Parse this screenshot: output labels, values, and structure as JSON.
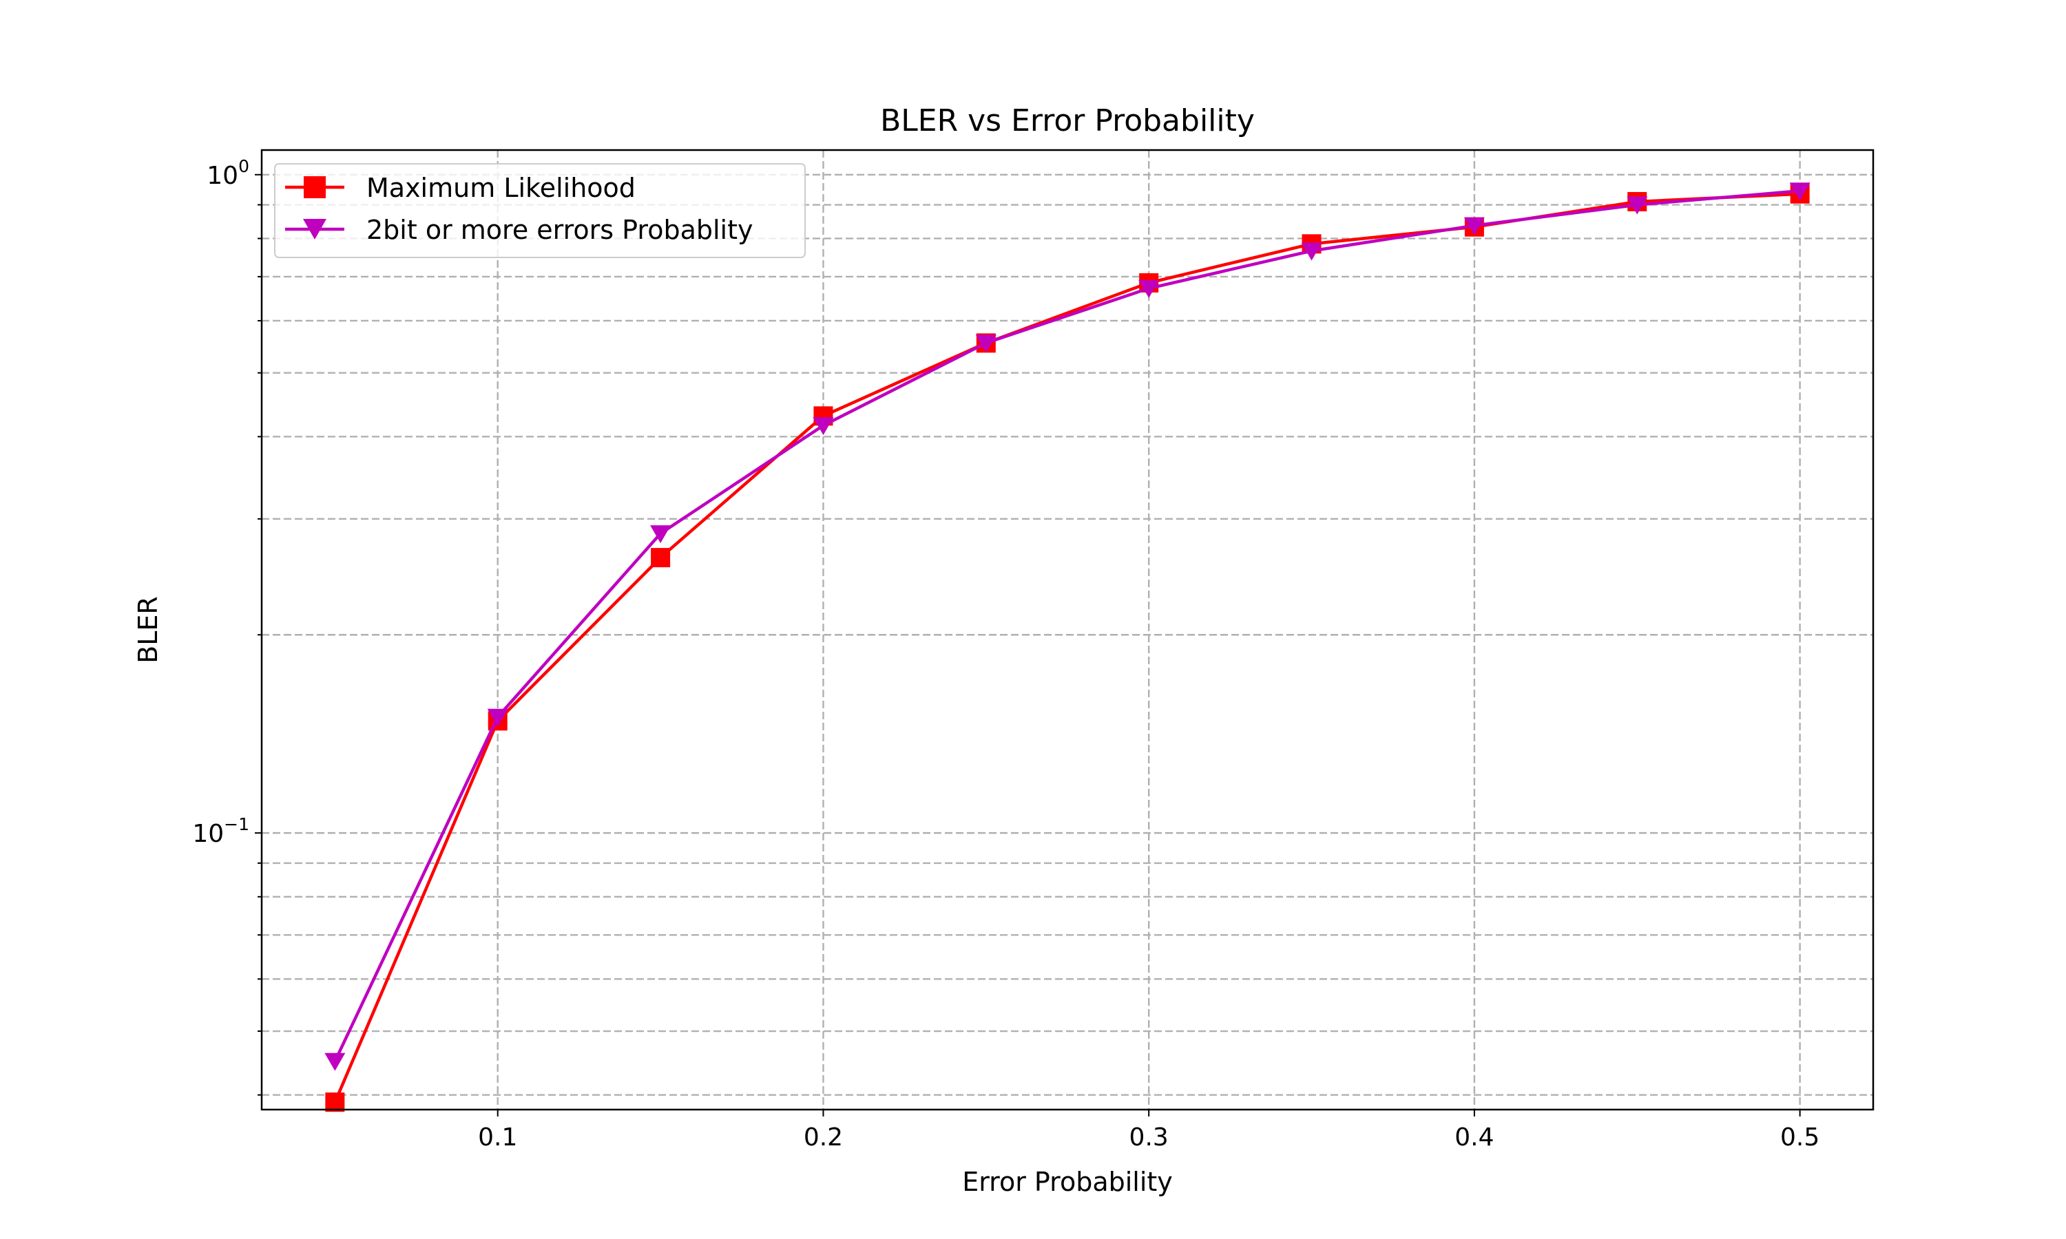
{
  "chart_data": {
    "type": "line",
    "title": "BLER vs Error Probability",
    "xlabel": "Error Probability",
    "ylabel": "BLER",
    "yscale": "log",
    "xlim": [
      0.0275,
      0.5225
    ],
    "ylim": [
      0.038,
      1.09
    ],
    "grid": "both, dashed",
    "legend_position": "upper left",
    "x_ticks": [
      {
        "value": 0.1,
        "label": "0.1"
      },
      {
        "value": 0.2,
        "label": "0.2"
      },
      {
        "value": 0.3,
        "label": "0.3"
      },
      {
        "value": 0.4,
        "label": "0.4"
      },
      {
        "value": 0.5,
        "label": "0.5"
      }
    ],
    "y_major_ticks": [
      {
        "value": 0.1,
        "base": "10",
        "exponent": "−1"
      },
      {
        "value": 1.0,
        "base": "10",
        "exponent": "0"
      }
    ],
    "y_minor_ticks": [
      0.04,
      0.05,
      0.06,
      0.07,
      0.08,
      0.09,
      0.2,
      0.3,
      0.4,
      0.5,
      0.6,
      0.7,
      0.8,
      0.9
    ],
    "x": [
      0.05,
      0.1,
      0.15,
      0.2,
      0.25,
      0.3,
      0.35,
      0.4,
      0.45,
      0.5
    ],
    "series": [
      {
        "name": "Maximum Likelihood",
        "color": "#ff0000",
        "marker": "square",
        "values": [
          0.039,
          0.148,
          0.262,
          0.43,
          0.555,
          0.685,
          0.785,
          0.833,
          0.91,
          0.935
        ]
      },
      {
        "name": "2bit or more errors Probablity",
        "color": "#bf00bf",
        "marker": "triangle-down",
        "values": [
          0.045,
          0.15,
          0.285,
          0.416,
          0.555,
          0.672,
          0.766,
          0.837,
          0.9,
          0.945
        ]
      }
    ]
  }
}
